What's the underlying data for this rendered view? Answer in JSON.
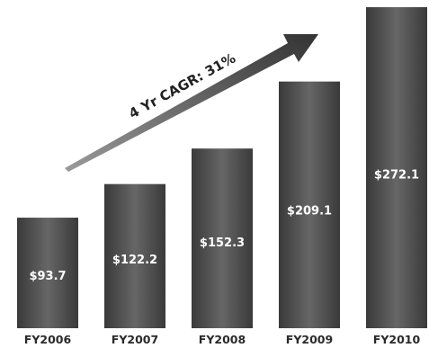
{
  "chart_data": {
    "type": "bar",
    "categories": [
      "FY2006",
      "FY2007",
      "FY2008",
      "FY2009",
      "FY2010"
    ],
    "values": [
      93.7,
      122.2,
      152.3,
      209.1,
      272.1
    ],
    "value_labels": [
      "$93.7",
      "$122.2",
      "$152.3",
      "$209.1",
      "$272.1"
    ],
    "title": "",
    "xlabel": "",
    "ylabel": "",
    "ylim": [
      0,
      280
    ],
    "grid": false,
    "annotations": [
      {
        "text": "4 Yr CAGR: 31%",
        "type": "arrow"
      }
    ],
    "colors": {
      "bar": "#555555",
      "bar_dark": "#3a3a3a",
      "bar_light": "#6e6e6e",
      "arrow": "#4a4a4a",
      "value_text": "#ffffff"
    }
  }
}
